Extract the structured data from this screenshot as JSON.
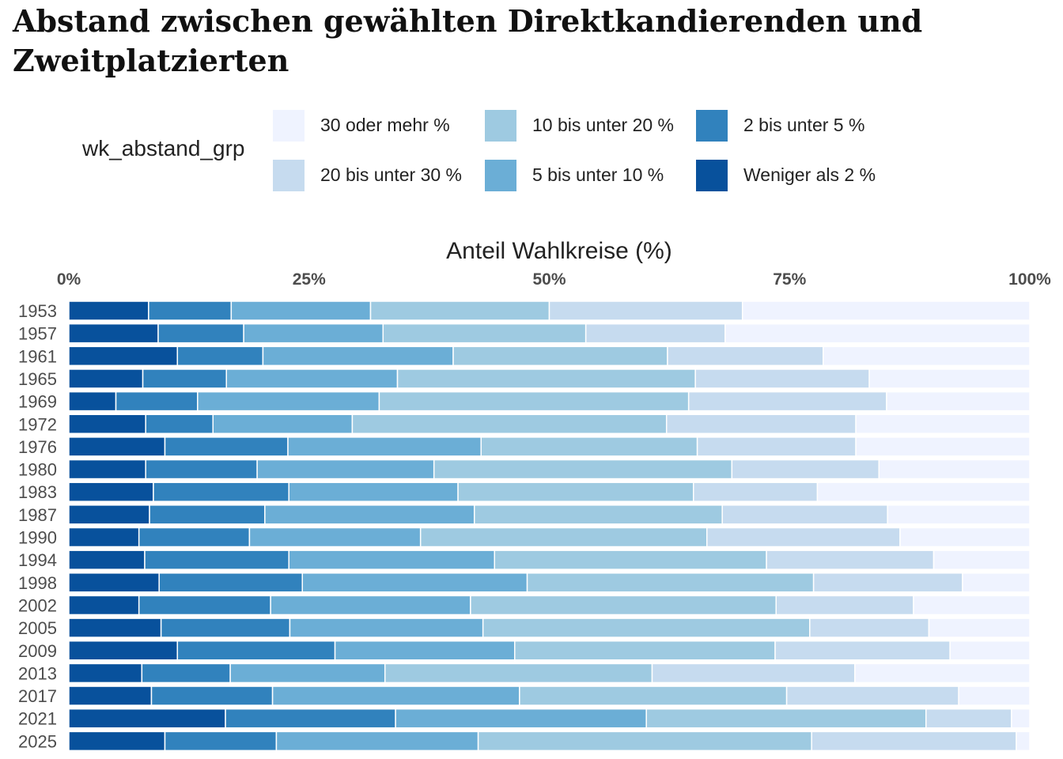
{
  "chart_data": {
    "type": "bar",
    "orientation": "horizontal",
    "stacked": true,
    "title": "Abstand zwischen gewählten Direktkandierenden und Zweitplatzierten",
    "xlabel": "Anteil Wahlkreise (%)",
    "ylabel": "",
    "xlim": [
      0,
      100
    ],
    "x_ticks": [
      "0%",
      "25%",
      "50%",
      "75%",
      "100%"
    ],
    "x_axis_position": "top",
    "grid": false,
    "legend": {
      "title": "wk_abstand_grp",
      "placement": "top",
      "entries": [
        {
          "label": "30 oder mehr %",
          "color": "#eff3ff"
        },
        {
          "label": "20 bis unter 30 %",
          "color": "#c6dbef"
        },
        {
          "label": "10 bis unter 20 %",
          "color": "#9ecae1"
        },
        {
          "label": "5 bis unter 10 %",
          "color": "#6baed6"
        },
        {
          "label": "2 bis unter 5 %",
          "color": "#3182bd"
        },
        {
          "label": "Weniger als 2 %",
          "color": "#08519c"
        }
      ]
    },
    "categories": [
      "1953",
      "1957",
      "1961",
      "1965",
      "1969",
      "1972",
      "1976",
      "1980",
      "1983",
      "1987",
      "1990",
      "1994",
      "1998",
      "2002",
      "2005",
      "2009",
      "2013",
      "2017",
      "2021",
      "2025"
    ],
    "series": [
      {
        "name": "Weniger als 2 %",
        "color": "#08519c",
        "values": [
          8.3,
          9.3,
          11.3,
          7.7,
          4.9,
          8.0,
          10.0,
          8.0,
          8.8,
          8.4,
          7.3,
          7.9,
          9.4,
          7.3,
          9.6,
          11.3,
          7.6,
          8.6,
          16.3,
          10.0
        ]
      },
      {
        "name": "2 bis unter 5 %",
        "color": "#3182bd",
        "values": [
          8.6,
          8.9,
          8.9,
          8.7,
          8.5,
          7.0,
          12.8,
          11.6,
          14.1,
          12.0,
          11.5,
          15.0,
          14.9,
          13.7,
          13.4,
          16.4,
          9.2,
          12.6,
          17.7,
          11.6
        ]
      },
      {
        "name": "5 bis unter 10 %",
        "color": "#6baed6",
        "values": [
          14.5,
          14.5,
          19.8,
          17.8,
          18.9,
          14.5,
          20.1,
          18.4,
          17.6,
          21.8,
          17.8,
          21.4,
          23.4,
          20.8,
          20.1,
          18.7,
          16.1,
          25.7,
          26.1,
          21.0
        ]
      },
      {
        "name": "10 bis unter 20 %",
        "color": "#9ecae1",
        "values": [
          18.6,
          21.1,
          22.3,
          31.0,
          32.2,
          32.7,
          22.5,
          31.0,
          24.5,
          25.8,
          29.8,
          28.3,
          29.8,
          31.8,
          34.0,
          27.1,
          27.8,
          27.8,
          29.1,
          34.7
        ]
      },
      {
        "name": "20 bis unter 30 %",
        "color": "#c6dbef",
        "values": [
          20.1,
          14.5,
          16.2,
          18.1,
          20.6,
          19.7,
          16.5,
          15.3,
          12.9,
          17.2,
          20.1,
          17.4,
          15.5,
          14.3,
          12.4,
          18.2,
          21.1,
          17.9,
          8.9,
          21.3
        ]
      },
      {
        "name": "30 oder mehr %",
        "color": "#eff3ff",
        "values": [
          29.9,
          31.7,
          21.5,
          16.7,
          14.9,
          18.1,
          18.1,
          15.7,
          22.1,
          14.8,
          13.5,
          10.0,
          7.0,
          12.1,
          10.5,
          8.3,
          18.2,
          7.4,
          1.9,
          1.4
        ]
      }
    ]
  }
}
